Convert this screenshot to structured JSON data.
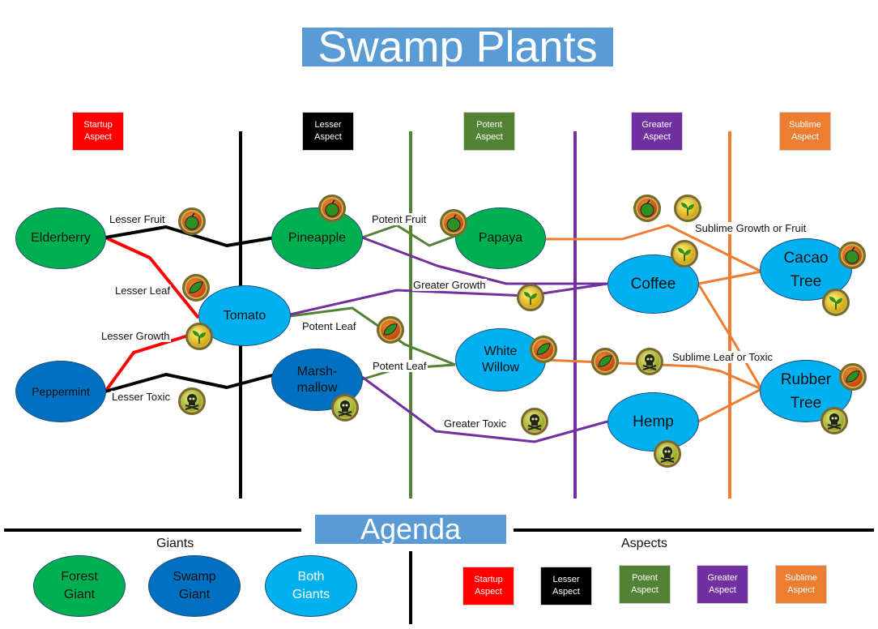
{
  "title": "Swamp Plants",
  "agenda": "Agenda",
  "colors": {
    "startup": "#ff0000",
    "lesser": "#000000",
    "potent": "#548235",
    "greater": "#7030a0",
    "sublime": "#ed7d31",
    "forest_giant": "#00b050",
    "swamp_giant": "#0070c0",
    "both_giants": "#00b0f0"
  },
  "aspect_headers": [
    {
      "label": "Startup\nAspect",
      "color": "#ff0000"
    },
    {
      "label": "Lesser\nAspect",
      "color": "#000000"
    },
    {
      "label": "Potent\nAspect",
      "color": "#548235"
    },
    {
      "label": "Greater\nAspect",
      "color": "#7030a0"
    },
    {
      "label": "Sublime\nAspect",
      "color": "#ed7d31"
    }
  ],
  "plants": {
    "elderberry": "Elderberry",
    "peppermint": "Peppermint",
    "tomato": "Tomato",
    "pineapple": "Pineapple",
    "marshmallow": "Marsh-\nmallow",
    "papaya": "Papaya",
    "white_willow": "White\nWillow",
    "coffee": "Coffee",
    "hemp": "Hemp",
    "cacao_tree": "Cacao\nTree",
    "rubber_tree": "Rubber\nTree"
  },
  "edge_labels": {
    "lesser_fruit": "Lesser Fruit",
    "lesser_leaf": "Lesser Leaf",
    "lesser_growth": "Lesser Growth",
    "lesser_toxic": "Lesser Toxic",
    "potent_fruit": "Potent Fruit",
    "potent_leaf_tomato": "Potent Leaf",
    "potent_leaf_marsh": "Potent Leaf",
    "greater_growth": "Greater Growth",
    "greater_toxic": "Greater Toxic",
    "sublime_growth_fruit": "Sublime Growth or Fruit",
    "sublime_leaf_toxic": "Sublime Leaf or Toxic"
  },
  "icon_types": [
    "fruit-icon",
    "leaf-icon",
    "growth-icon",
    "toxic-icon"
  ],
  "legend": {
    "giants_header": "Giants",
    "aspects_header": "Aspects",
    "giants": [
      {
        "label": "Forest\nGiant",
        "color": "#00b050"
      },
      {
        "label": "Swamp\nGiant",
        "color": "#0070c0"
      },
      {
        "label": "Both\nGiants",
        "color": "#00b0f0"
      }
    ],
    "aspects": [
      {
        "label": "Startup\nAspect",
        "color": "#ff0000"
      },
      {
        "label": "Lesser\nAspect",
        "color": "#000000"
      },
      {
        "label": "Potent\nAspect",
        "color": "#548235"
      },
      {
        "label": "Greater\nAspect",
        "color": "#7030a0"
      },
      {
        "label": "Sublime\nAspect",
        "color": "#ed7d31"
      }
    ]
  }
}
